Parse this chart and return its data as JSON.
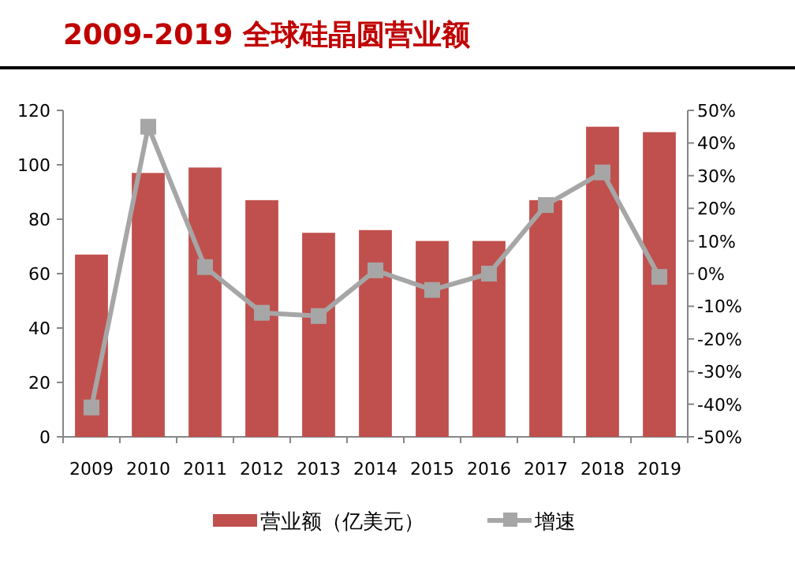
{
  "chart_data": {
    "type": "bar",
    "title": "2009-2019 全球硅晶圆营业额",
    "categories": [
      "2009",
      "2010",
      "2011",
      "2012",
      "2013",
      "2014",
      "2015",
      "2016",
      "2017",
      "2018",
      "2019"
    ],
    "series": [
      {
        "name": "营业额（亿美元）",
        "color": "#c0504d",
        "values": [
          67,
          97,
          99,
          87,
          75,
          76,
          72,
          72,
          87,
          114,
          112
        ]
      },
      {
        "name": "增速",
        "type": "line",
        "axis": "y2",
        "color": "#a6a6a6",
        "marker": "square",
        "values": [
          -41,
          45,
          2,
          -12,
          -13,
          1,
          -5,
          0,
          21,
          31,
          -1
        ]
      }
    ],
    "ylim": [
      0,
      120
    ],
    "yticks": [
      0,
      20,
      40,
      60,
      80,
      100,
      120
    ],
    "y2lim": [
      -50,
      50
    ],
    "y2ticks": [
      {
        "value": -50,
        "label": "-50%"
      },
      {
        "value": -40,
        "label": "-40%"
      },
      {
        "value": -30,
        "label": "-30%"
      },
      {
        "value": -20,
        "label": "-20%"
      },
      {
        "value": -10,
        "label": "-10%"
      },
      {
        "value": 0,
        "label": "0%"
      },
      {
        "value": 10,
        "label": "10%"
      },
      {
        "value": 20,
        "label": "20%"
      },
      {
        "value": 30,
        "label": "30%"
      },
      {
        "value": 40,
        "label": "40%"
      },
      {
        "value": 50,
        "label": "50%"
      }
    ],
    "grid": false,
    "legend": "bottom"
  }
}
